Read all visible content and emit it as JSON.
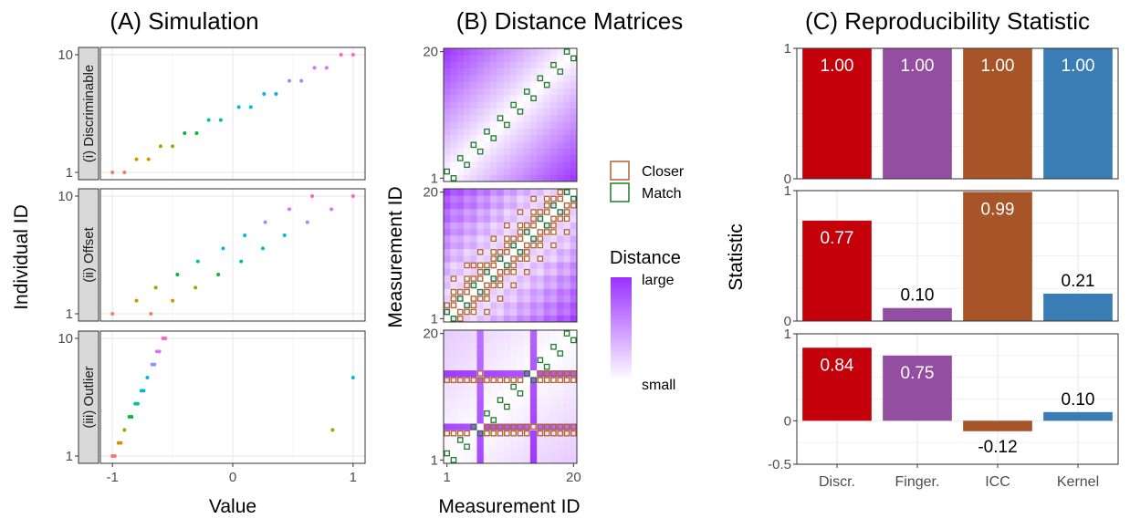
{
  "panel_titles": {
    "a": "(A) Simulation",
    "b": "(B) Distance Matrices",
    "c": "(C) Reproducibility Statistic"
  },
  "chart_data": [
    {
      "type": "scatter",
      "panel": "A",
      "xlabel": "Value",
      "ylabel": "Individual ID",
      "xlim": [
        -1.1,
        1.1
      ],
      "x_ticks": [
        "-1",
        "0",
        "1"
      ],
      "y_ticks": [
        "1",
        "10"
      ],
      "grid": true,
      "facets": [
        {
          "label": "(i) Discriminable",
          "points": [
            {
              "id": 1,
              "x": [
                -1.0,
                -0.9
              ]
            },
            {
              "id": 2,
              "x": [
                -0.8,
                -0.7
              ]
            },
            {
              "id": 3,
              "x": [
                -0.6,
                -0.5
              ]
            },
            {
              "id": 4,
              "x": [
                -0.4,
                -0.3
              ]
            },
            {
              "id": 5,
              "x": [
                -0.2,
                -0.1
              ]
            },
            {
              "id": 6,
              "x": [
                0.05,
                0.15
              ]
            },
            {
              "id": 7,
              "x": [
                0.26,
                0.36
              ]
            },
            {
              "id": 8,
              "x": [
                0.47,
                0.57
              ]
            },
            {
              "id": 9,
              "x": [
                0.68,
                0.78
              ]
            },
            {
              "id": 10,
              "x": [
                0.9,
                1.0
              ]
            }
          ]
        },
        {
          "label": "(ii) Offset",
          "points": [
            {
              "id": 1,
              "x": [
                -1.0,
                -0.68
              ]
            },
            {
              "id": 2,
              "x": [
                -0.8,
                -0.5
              ]
            },
            {
              "id": 3,
              "x": [
                -0.64,
                -0.31
              ]
            },
            {
              "id": 4,
              "x": [
                -0.46,
                -0.12
              ]
            },
            {
              "id": 5,
              "x": [
                -0.29,
                0.07
              ]
            },
            {
              "id": 6,
              "x": [
                -0.08,
                0.25
              ]
            },
            {
              "id": 7,
              "x": [
                0.1,
                0.43
              ]
            },
            {
              "id": 8,
              "x": [
                0.27,
                0.62
              ]
            },
            {
              "id": 9,
              "x": [
                0.47,
                0.82
              ]
            },
            {
              "id": 10,
              "x": [
                0.66,
                1.0
              ]
            }
          ]
        },
        {
          "label": "(iii) Outlier",
          "points": [
            {
              "id": 1,
              "x": [
                -1.0,
                -0.98
              ]
            },
            {
              "id": 2,
              "x": [
                -0.95,
                -0.93
              ]
            },
            {
              "id": 3,
              "x": [
                -0.9,
                0.83
              ]
            },
            {
              "id": 4,
              "x": [
                -0.86,
                -0.84
              ]
            },
            {
              "id": 5,
              "x": [
                -0.81,
                -0.79
              ]
            },
            {
              "id": 6,
              "x": [
                -0.76,
                -0.74
              ]
            },
            {
              "id": 7,
              "x": [
                -0.71,
                1.0
              ]
            },
            {
              "id": 8,
              "x": [
                -0.67,
                -0.65
              ]
            },
            {
              "id": 9,
              "x": [
                -0.63,
                -0.61
              ]
            },
            {
              "id": 10,
              "x": [
                -0.58,
                -0.56
              ]
            }
          ]
        }
      ],
      "id_colors": [
        "#F8766D",
        "#D39200",
        "#93AA00",
        "#00BA38",
        "#00C19F",
        "#00B9E3",
        "#00B9E3",
        "#9590FF",
        "#DB72FB",
        "#FF61C3"
      ]
    },
    {
      "type": "heatmap",
      "panel": "B",
      "xlabel": "Measurement ID",
      "ylabel": "Measurement ID",
      "x_ticks": [
        "1",
        "20"
      ],
      "y_ticks": [
        "1",
        "20"
      ],
      "legend": {
        "title": "Distance",
        "high_label": "large",
        "low_label": "small",
        "high_color": "#9B30FF",
        "low_color": "#FFFFFF",
        "box_items": [
          {
            "label": "Closer",
            "color": "#B0622E"
          },
          {
            "label": "Match",
            "color": "#1E7B2A"
          }
        ]
      },
      "matrices": [
        {
          "scenario": "Discriminable",
          "closer_cells": "none"
        },
        {
          "scenario": "Offset",
          "closer_cells": "diagonal band"
        },
        {
          "scenario": "Outlier",
          "outlier_ids": [
            3,
            7
          ]
        }
      ]
    },
    {
      "type": "bar",
      "panel": "C",
      "ylabel": "Statistic",
      "categories": [
        "Discr.",
        "Finger.",
        "ICC",
        "Kernel"
      ],
      "colors": [
        "#C4000B",
        "#944EA1",
        "#A75528",
        "#3A7DB5"
      ],
      "facets": [
        {
          "values": [
            1.0,
            1.0,
            1.0,
            1.0
          ],
          "labels": [
            "1.00",
            "1.00",
            "1.00",
            "1.00"
          ],
          "ylim": [
            0,
            1
          ],
          "y_ticks": [
            "0",
            "1"
          ]
        },
        {
          "values": [
            0.77,
            0.1,
            0.99,
            0.21
          ],
          "labels": [
            "0.77",
            "0.10",
            "0.99",
            "0.21"
          ],
          "ylim": [
            0,
            1
          ],
          "y_ticks": [
            "0",
            "1"
          ]
        },
        {
          "values": [
            0.84,
            0.75,
            -0.12,
            0.1
          ],
          "labels": [
            "0.84",
            "0.75",
            "-0.12",
            "0.10"
          ],
          "ylim": [
            -0.5,
            1
          ],
          "y_ticks": [
            "-0.5",
            "0",
            "1"
          ]
        }
      ]
    }
  ]
}
